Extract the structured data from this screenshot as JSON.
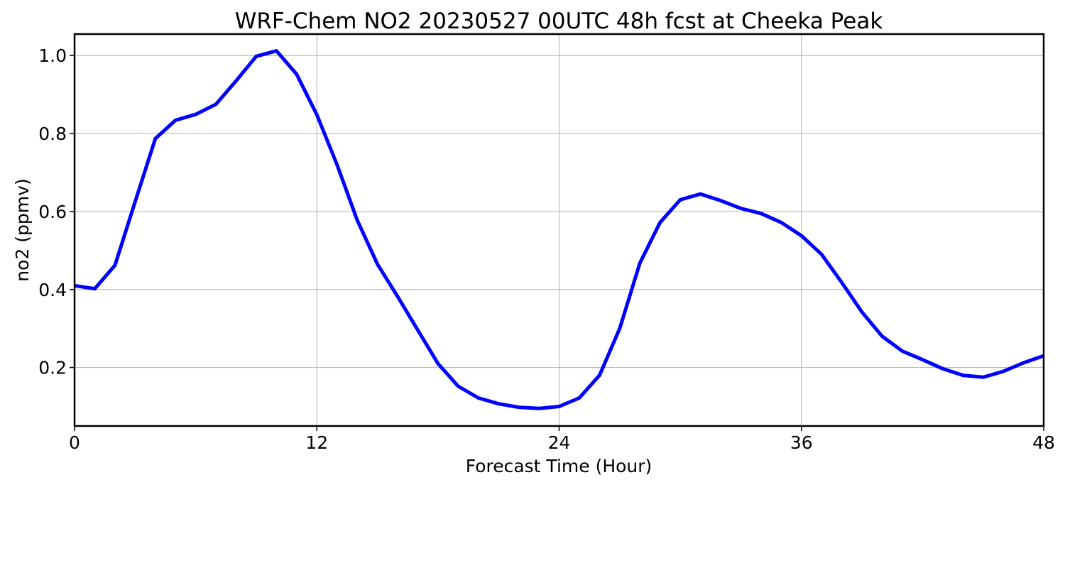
{
  "chart_data": {
    "type": "line",
    "title": "WRF-Chem NO2  20230527 00UTC 48h fcst at Cheeka Peak",
    "xlabel": "Forecast Time (Hour)",
    "ylabel": "no2  (ppmv)",
    "xlim": [
      0,
      48
    ],
    "ylim": [
      0.05,
      1.055
    ],
    "xticks": [
      0,
      12,
      24,
      36,
      48
    ],
    "yticks": [
      0.2,
      0.4,
      0.6,
      0.8,
      1.0
    ],
    "ytick_labels": [
      "0.2",
      "0.4",
      "0.6",
      "0.8",
      "1.0"
    ],
    "grid": true,
    "series": [
      {
        "color": "#0000ff",
        "x": [
          0,
          1,
          2,
          3,
          4,
          5,
          6,
          7,
          8,
          9,
          10,
          11,
          12,
          13,
          14,
          15,
          16,
          17,
          18,
          19,
          20,
          21,
          22,
          23,
          24,
          25,
          26,
          27,
          28,
          29,
          30,
          31,
          32,
          33,
          34,
          35,
          36,
          37,
          38,
          39,
          40,
          41,
          42,
          43,
          44,
          45,
          46,
          47,
          48
        ],
        "values": [
          0.41,
          0.402,
          0.462,
          0.625,
          0.787,
          0.834,
          0.849,
          0.875,
          0.935,
          0.998,
          1.012,
          0.952,
          0.848,
          0.72,
          0.578,
          0.465,
          0.382,
          0.296,
          0.21,
          0.152,
          0.122,
          0.107,
          0.098,
          0.095,
          0.1,
          0.122,
          0.18,
          0.3,
          0.468,
          0.572,
          0.63,
          0.645,
          0.628,
          0.608,
          0.595,
          0.572,
          0.538,
          0.49,
          0.418,
          0.342,
          0.28,
          0.242,
          0.22,
          0.197,
          0.18,
          0.175,
          0.19,
          0.212,
          0.23
        ]
      }
    ]
  }
}
